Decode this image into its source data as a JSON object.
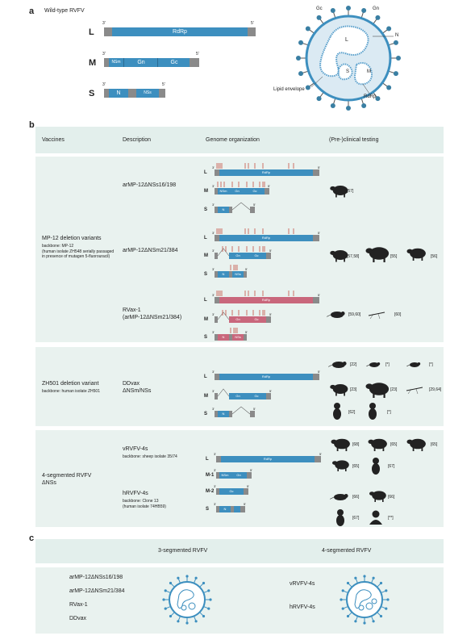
{
  "panel_a": {
    "letter": "a",
    "title": "Wild-type RVFV",
    "segments": [
      {
        "name": "L",
        "p3": "3'",
        "p5": "5'",
        "genes": [
          "RdRp"
        ]
      },
      {
        "name": "M",
        "p3": "3'",
        "p5": "5'",
        "genes": [
          "NSm",
          "Gn",
          "Gc"
        ]
      },
      {
        "name": "S",
        "p3": "3'",
        "p5": "5'",
        "genes": [
          "N",
          "NSs"
        ]
      }
    ],
    "virion_labels": {
      "gc": "Gc",
      "gn": "Gn",
      "n": "N",
      "l": "L",
      "s": "S",
      "m": "M",
      "lipid": "Lipid envelope",
      "rdrp": "RdRp"
    }
  },
  "panel_b": {
    "letter": "b",
    "headers": {
      "vaccines": "Vaccines",
      "description": "Description",
      "genome": "Genome organization",
      "testing": "(Pre-)clinical testing"
    },
    "mp12": {
      "title": "MP-12 deletion variants",
      "backbone": "backbone: MP-12",
      "backbone_note": "(human isolate ZH548 serially passaged in presence of mutagen 5-fluorouracil)",
      "vaccines": [
        {
          "name": "arMP-12ΔNSs16/198",
          "refs": [
            "[57]"
          ]
        },
        {
          "name": "arMP-12ΔNSm21/384",
          "refs": [
            "[57,58]",
            "[55]",
            "[56]"
          ]
        },
        {
          "name": "RVax-1",
          "name2": "(arMP-12ΔNSm21/384)",
          "refs": [
            "[59,60]",
            "[60]"
          ]
        }
      ]
    },
    "zh501": {
      "title": "ZH501 deletion variant",
      "backbone": "backbone: human isolate ZH501",
      "vaccine": "DDvax",
      "vaccine2": "ΔNSm/NSs",
      "refs": [
        "[22]",
        "[*]",
        "[*]",
        "[23]",
        "[23]",
        "[29,64]",
        "[62]",
        "[*]"
      ]
    },
    "four_seg": {
      "title": "4-segmented RVFV",
      "title2": "ΔNSs",
      "v1": "vRVFV-4s",
      "v1_backbone": "backbone: sheep isolate 35/74",
      "v2": "hRVFV-4s",
      "v2_backbone": "backbone: Clone 13",
      "v2_note": "(human isolate 74HB59)",
      "segments": [
        "L",
        "M-1",
        "M-2",
        "S"
      ],
      "refs": [
        "[68]",
        "[65]",
        "[65]",
        "[65]",
        "[67]",
        "[66]",
        "[66]",
        "[67]",
        "[**]"
      ]
    },
    "gene_labels": {
      "rdrp": "RdRp",
      "nsm": "NSm",
      "gn": "Gn",
      "gc": "Gc",
      "n": "N",
      "nss": "NSs"
    },
    "ends": {
      "p3": "3'",
      "p5": "5'"
    }
  },
  "panel_c": {
    "letter": "c",
    "header_3seg": "3-segmented RVFV",
    "header_4seg": "4-segmented RVFV",
    "list_3seg": [
      "arMP-12ΔNSs16/198",
      "arMP-12ΔNSm21/384",
      "RVax-1",
      "DDvax"
    ],
    "list_4seg": [
      "vRVFV-4s",
      "hRVFV-4s"
    ]
  },
  "colors": {
    "segment_blue": "#3d8fbf",
    "segment_pink": "#c9677c",
    "ends_grey": "#8a8a8a",
    "header_bg": "#e3efec",
    "mutation_red": "#c0392b"
  }
}
